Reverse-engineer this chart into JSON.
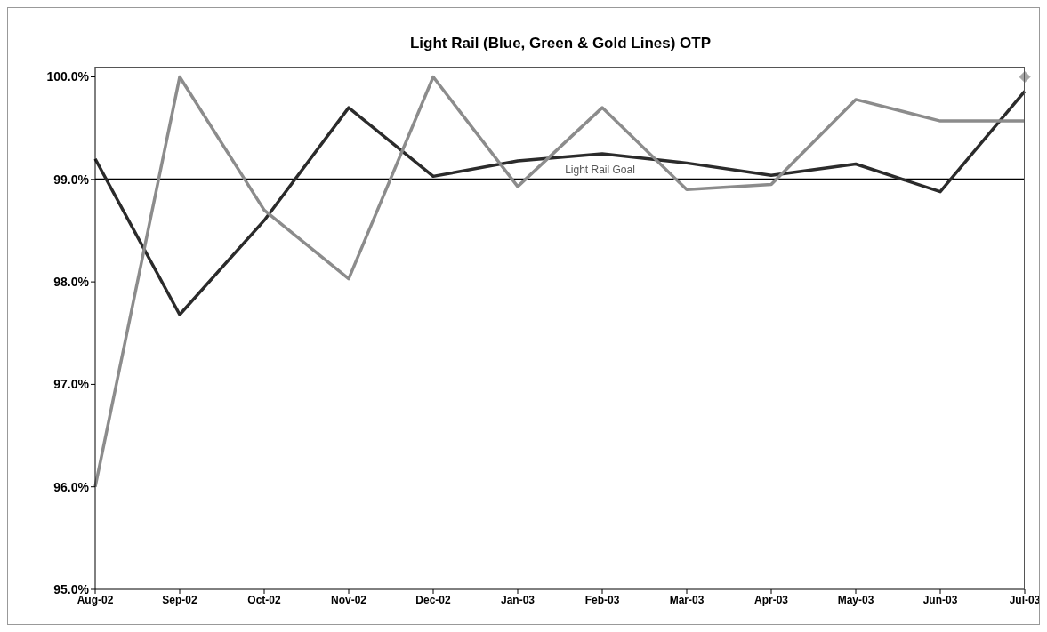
{
  "chart_data": {
    "type": "line",
    "title": "Light Rail (Blue, Green & Gold Lines) OTP",
    "categories": [
      "Aug-02",
      "Sep-02",
      "Oct-02",
      "Nov-02",
      "Dec-02",
      "Jan-03",
      "Feb-03",
      "Mar-03",
      "Apr-03",
      "May-03",
      "Jun-03",
      "Jul-03"
    ],
    "series": [
      {
        "color": "#2b2b2b",
        "values": [
          99.2,
          97.68,
          98.6,
          99.7,
          99.03,
          99.18,
          99.25,
          99.16,
          99.04,
          99.15,
          98.88,
          99.86
        ]
      },
      {
        "color": "#8c8c8c",
        "values": [
          96.0,
          100.0,
          98.7,
          98.03,
          100.0,
          98.93,
          99.7,
          98.9,
          98.95,
          99.78,
          99.57,
          99.57
        ]
      },
      {
        "color": "#a6a6a6",
        "marker": "diamond",
        "values": [
          null,
          null,
          null,
          null,
          null,
          null,
          null,
          null,
          null,
          null,
          null,
          100.0
        ]
      }
    ],
    "ylim": [
      95,
      100.1
    ],
    "yticks": [
      {
        "value": 95,
        "label": "95.0%"
      },
      {
        "value": 96,
        "label": "96.0%"
      },
      {
        "value": 97,
        "label": "97.0%"
      },
      {
        "value": 98,
        "label": "98.0%"
      },
      {
        "value": 99,
        "label": "99.0%"
      },
      {
        "value": 100,
        "label": "100.0%"
      }
    ],
    "ref_lines": [
      {
        "axis": "y",
        "value": 99,
        "label": "Light Rail Goal",
        "color": "#000000"
      }
    ],
    "grid": false,
    "legend": false,
    "marker": "none"
  }
}
